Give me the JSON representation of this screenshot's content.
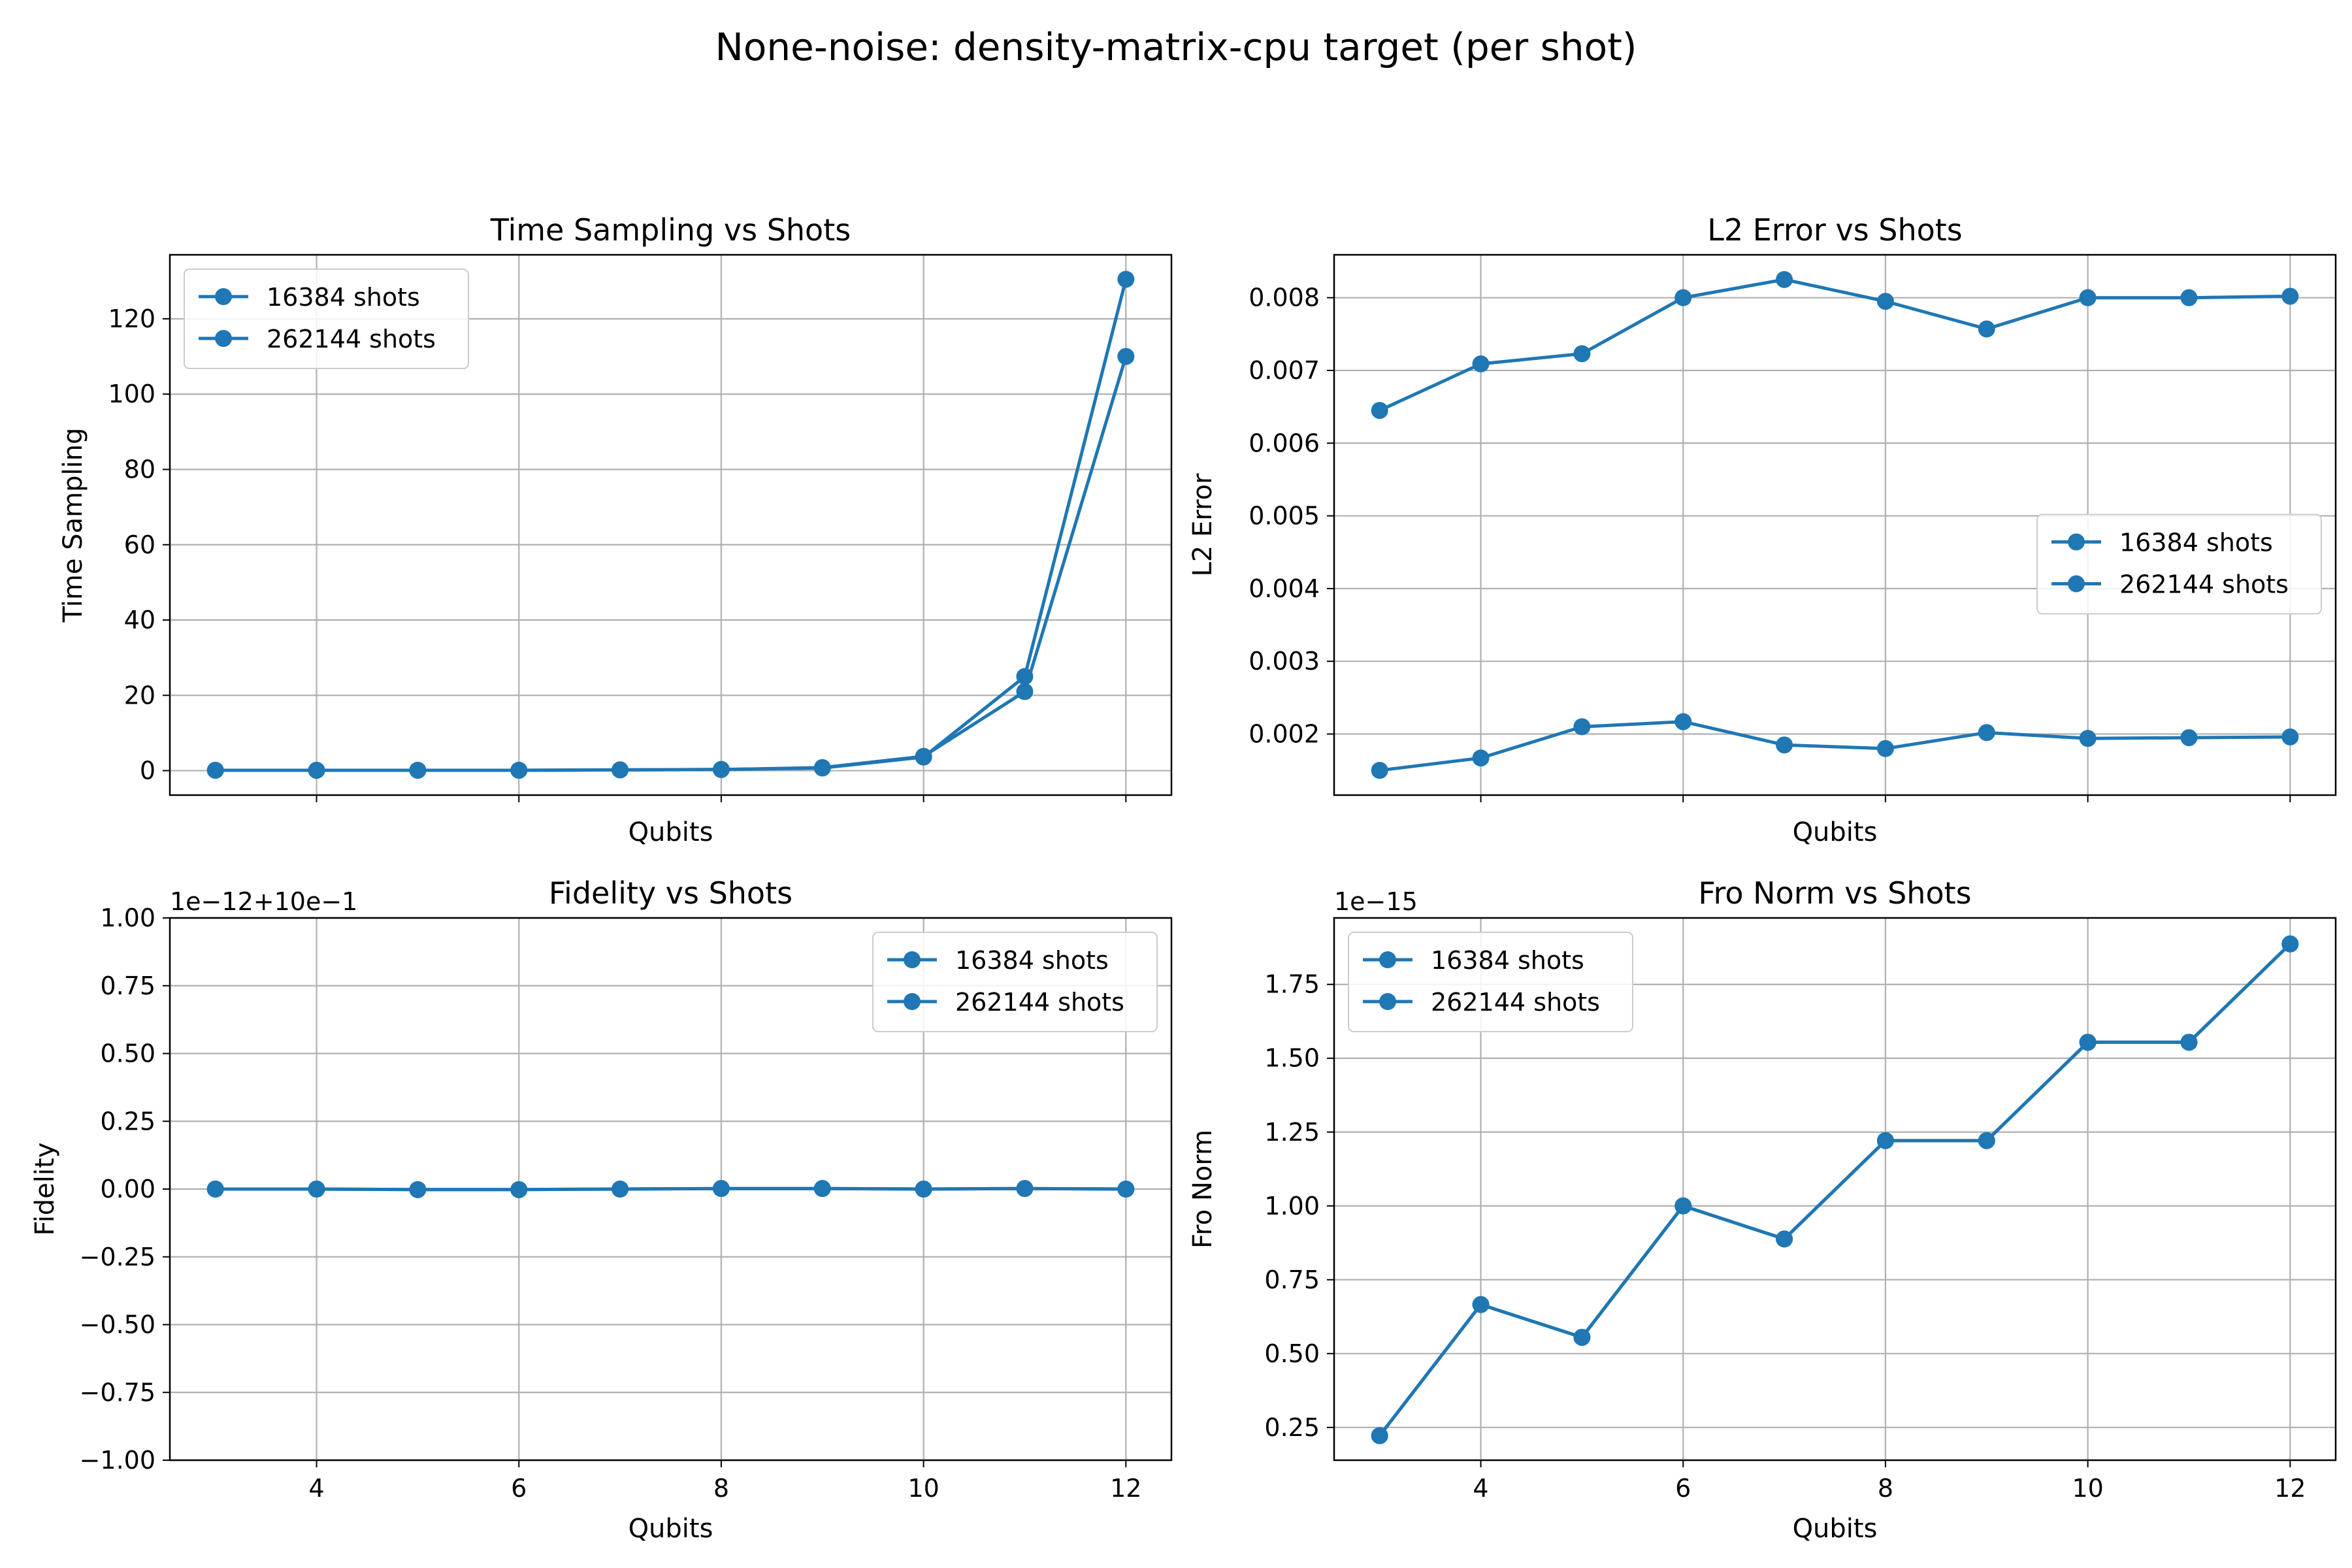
{
  "figure": {
    "title": "None-noise: density-matrix-cpu target (per shot)"
  },
  "style": {
    "series_color": "#1f77b4",
    "grid_color": "#b0b0b0",
    "axes_color": "#000000",
    "background": "#ffffff"
  },
  "chart_data": [
    {
      "type": "line",
      "title": "Time Sampling vs Shots",
      "xlabel": "Qubits",
      "ylabel": "Time Sampling",
      "offset_text": "",
      "xlim": [
        2.55,
        12.45
      ],
      "ylim": [
        -6.5,
        137
      ],
      "xticks": [
        4,
        6,
        8,
        10,
        12
      ],
      "xtick_labels_visible": false,
      "yticks": [
        0,
        20,
        40,
        60,
        80,
        100,
        120
      ],
      "ytick_labels": [
        "0",
        "20",
        "40",
        "60",
        "80",
        "100",
        "120"
      ],
      "grid": true,
      "legend_position": "upper-left",
      "x": [
        3,
        4,
        5,
        6,
        7,
        8,
        9,
        10,
        11,
        12
      ],
      "series": [
        {
          "name": "16384 shots",
          "values": [
            0.1,
            0.1,
            0.1,
            0.1,
            0.2,
            0.3,
            0.7,
            3.6,
            25.0,
            130.5
          ]
        },
        {
          "name": "262144 shots",
          "values": [
            0.1,
            0.1,
            0.1,
            0.1,
            0.2,
            0.3,
            0.8,
            3.8,
            21.0,
            110.0
          ]
        }
      ]
    },
    {
      "type": "line",
      "title": "L2 Error vs Shots",
      "xlabel": "Qubits",
      "ylabel": "L2 Error",
      "offset_text": "",
      "xlim": [
        2.55,
        12.45
      ],
      "ylim": [
        0.00116,
        0.00859
      ],
      "xticks": [
        4,
        6,
        8,
        10,
        12
      ],
      "xtick_labels_visible": false,
      "yticks": [
        0.002,
        0.003,
        0.004,
        0.005,
        0.006,
        0.007,
        0.008
      ],
      "ytick_labels": [
        "0.002",
        "0.003",
        "0.004",
        "0.005",
        "0.006",
        "0.007",
        "0.008"
      ],
      "grid": true,
      "legend_position": "center-right",
      "x": [
        3,
        4,
        5,
        6,
        7,
        8,
        9,
        10,
        11,
        12
      ],
      "series": [
        {
          "name": "16384 shots",
          "values": [
            0.00645,
            0.00709,
            0.00723,
            0.008,
            0.00825,
            0.00795,
            0.00757,
            0.008,
            0.008,
            0.00802
          ]
        },
        {
          "name": "262144 shots",
          "values": [
            0.0015,
            0.00167,
            0.0021,
            0.00217,
            0.00185,
            0.0018,
            0.00202,
            0.00194,
            0.00195,
            0.00196
          ]
        }
      ]
    },
    {
      "type": "line",
      "title": "Fidelity vs Shots",
      "xlabel": "Qubits",
      "ylabel": "Fidelity",
      "offset_text": "1e−12+10e−1",
      "xlim": [
        2.55,
        12.45
      ],
      "ylim": [
        -1.0,
        1.0
      ],
      "xticks": [
        4,
        6,
        8,
        10,
        12
      ],
      "xtick_labels_visible": true,
      "xtick_labels": [
        "4",
        "6",
        "8",
        "10",
        "12"
      ],
      "yticks": [
        -1.0,
        -0.75,
        -0.5,
        -0.25,
        0.0,
        0.25,
        0.5,
        0.75,
        1.0
      ],
      "ytick_labels": [
        "−1.00",
        "−0.75",
        "−0.50",
        "−0.25",
        "0.00",
        "0.25",
        "0.50",
        "0.75",
        "1.00"
      ],
      "grid": true,
      "legend_position": "upper-right",
      "x": [
        3,
        4,
        5,
        6,
        7,
        8,
        9,
        10,
        11,
        12
      ],
      "series": [
        {
          "name": "16384 shots",
          "values": [
            0.0,
            0.0,
            -0.002,
            -0.002,
            0.0,
            0.002,
            0.002,
            0.0,
            0.002,
            0.0
          ]
        },
        {
          "name": "262144 shots",
          "values": [
            0.0,
            0.0,
            -0.002,
            -0.002,
            0.0,
            0.002,
            0.002,
            0.0,
            0.002,
            0.0
          ]
        }
      ]
    },
    {
      "type": "line",
      "title": "Fro Norm vs Shots",
      "xlabel": "Qubits",
      "ylabel": "Fro Norm",
      "offset_text": "1e−15",
      "xlim": [
        2.55,
        12.45
      ],
      "ylim": [
        0.139,
        1.975
      ],
      "xticks": [
        4,
        6,
        8,
        10,
        12
      ],
      "xtick_labels_visible": true,
      "xtick_labels": [
        "4",
        "6",
        "8",
        "10",
        "12"
      ],
      "yticks": [
        0.25,
        0.5,
        0.75,
        1.0,
        1.25,
        1.5,
        1.75
      ],
      "ytick_labels": [
        "0.25",
        "0.50",
        "0.75",
        "1.00",
        "1.25",
        "1.50",
        "1.75"
      ],
      "grid": true,
      "legend_position": "upper-left",
      "x": [
        3,
        4,
        5,
        6,
        7,
        8,
        9,
        10,
        11,
        12
      ],
      "series": [
        {
          "name": "16384 shots",
          "values": [
            0.222,
            0.666,
            0.555,
            1.0,
            0.888,
            1.221,
            1.221,
            1.554,
            1.554,
            1.887
          ]
        },
        {
          "name": "262144 shots",
          "values": [
            0.222,
            0.666,
            0.555,
            1.0,
            0.888,
            1.221,
            1.221,
            1.554,
            1.554,
            1.887
          ]
        }
      ]
    }
  ]
}
